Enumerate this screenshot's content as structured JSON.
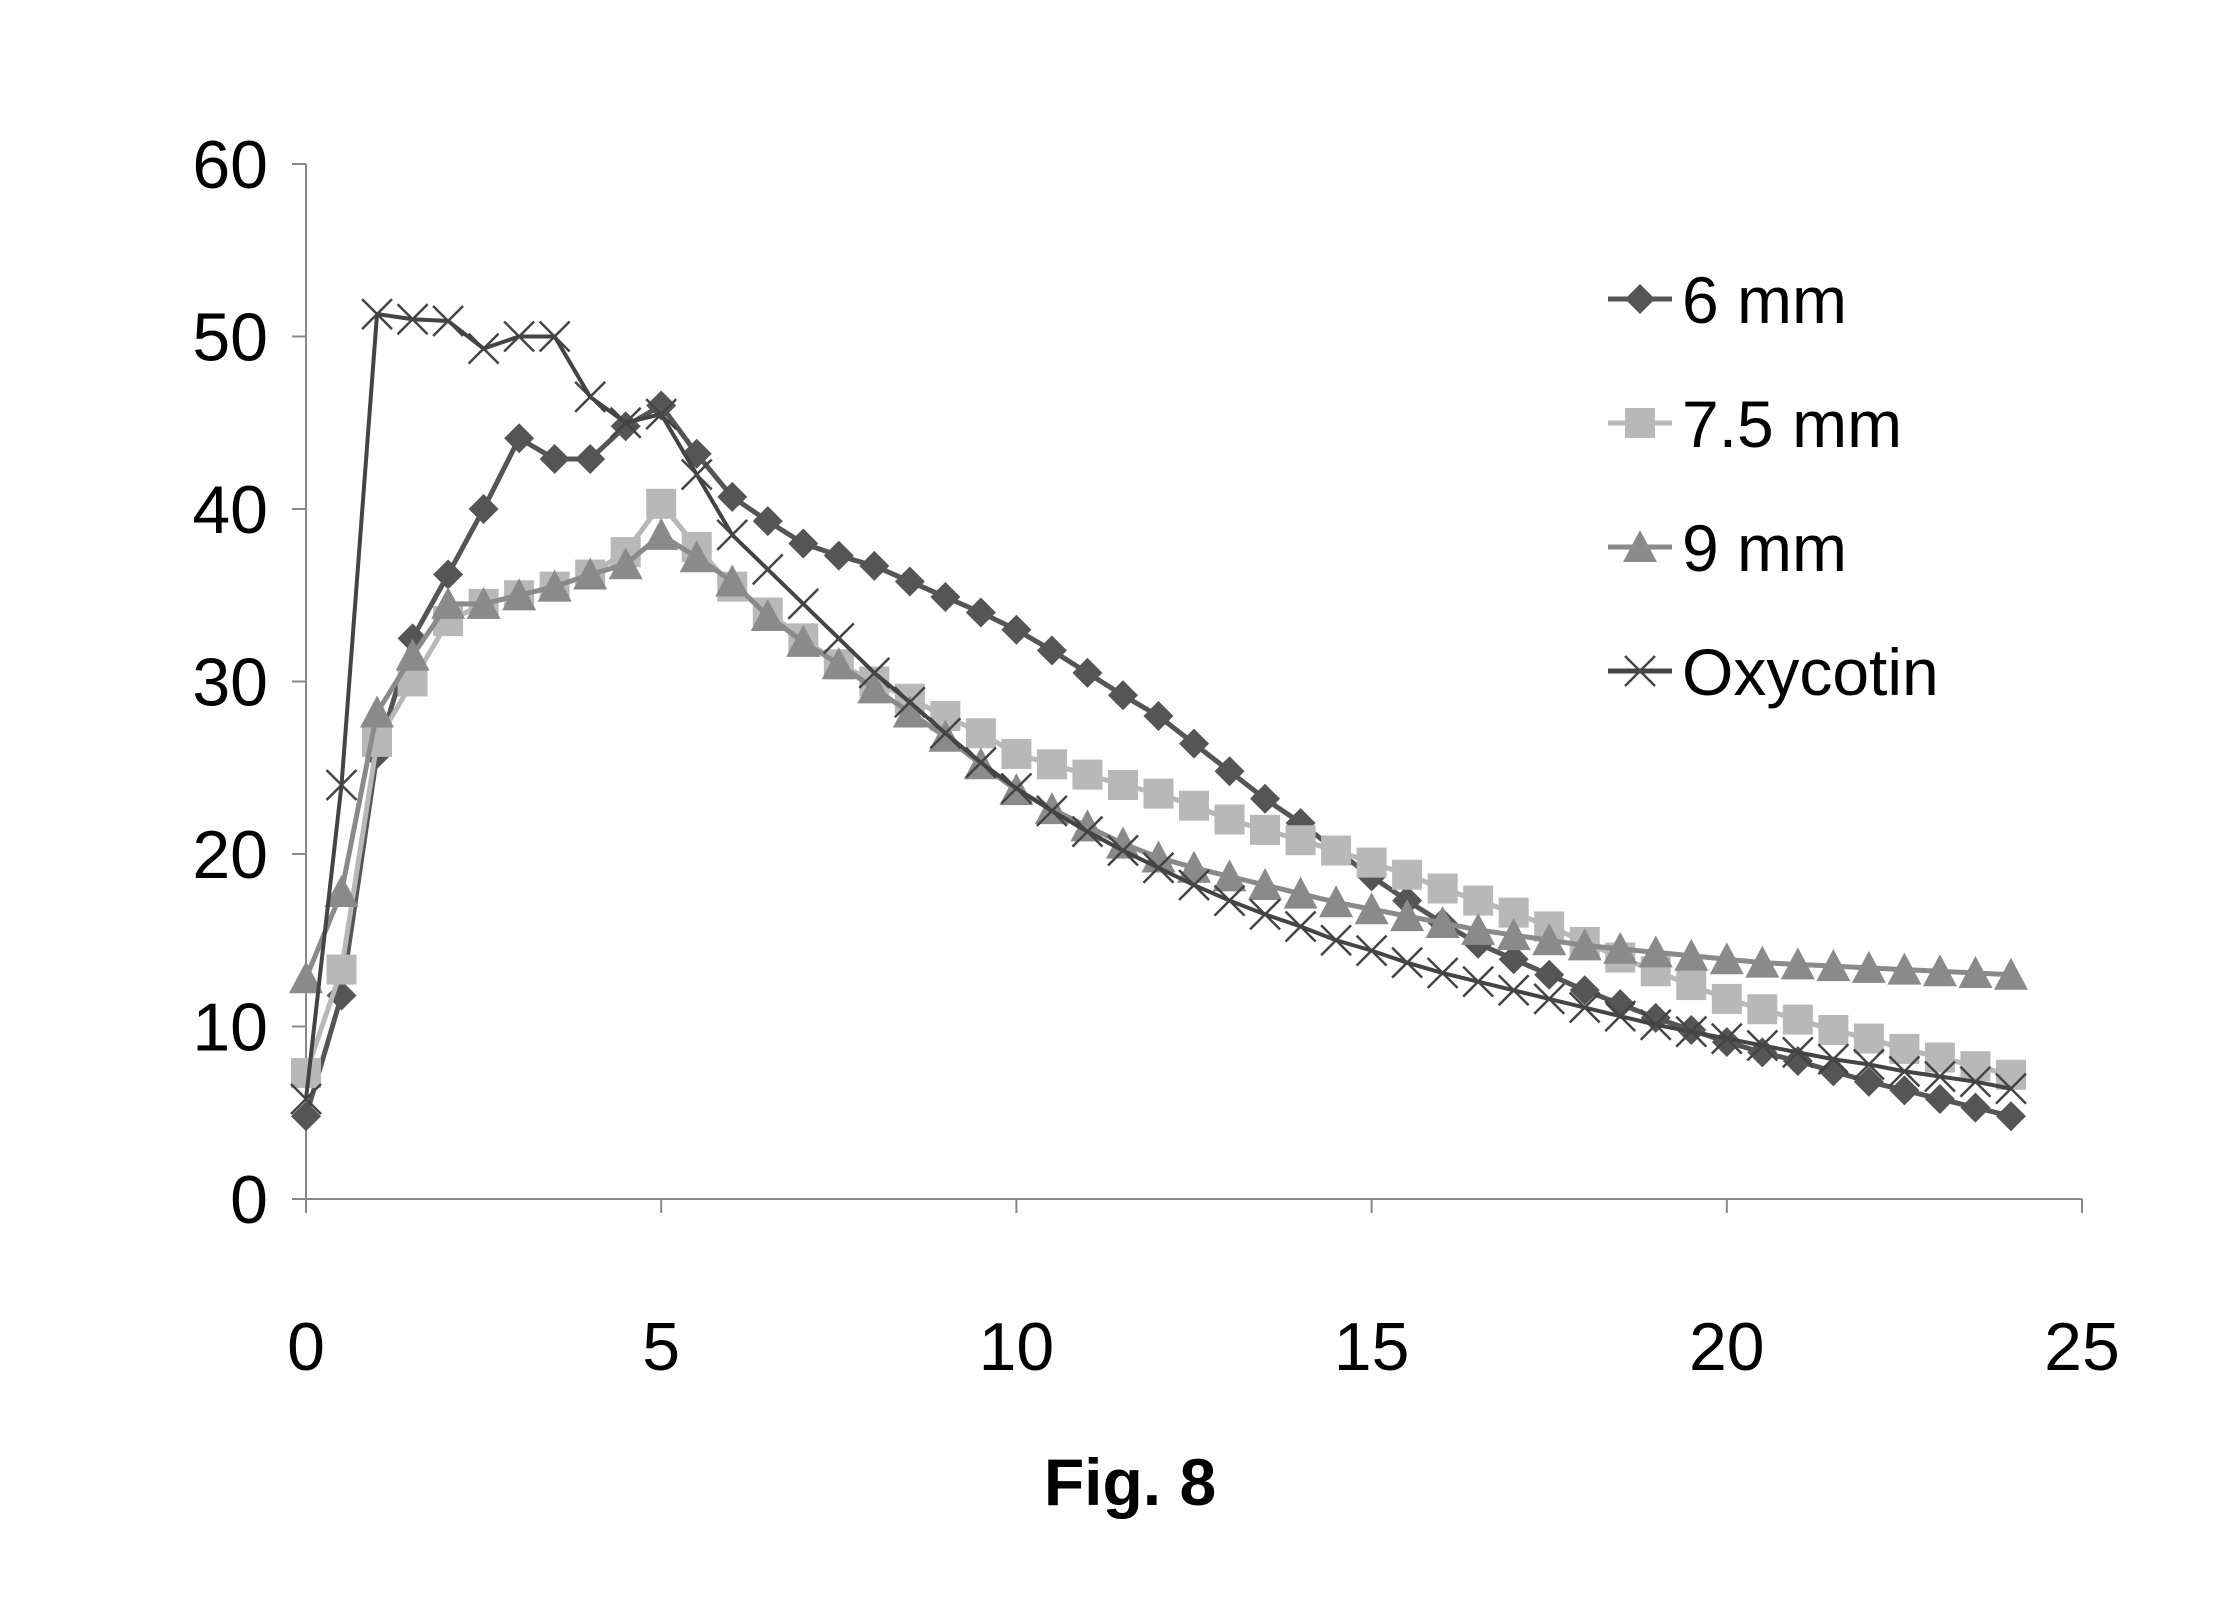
{
  "chart_data": {
    "type": "line",
    "title": "",
    "caption": "Fig. 8",
    "xlabel": "",
    "ylabel": "",
    "xlim": [
      0,
      25
    ],
    "ylim": [
      0,
      60
    ],
    "xticks": [
      "0",
      "5",
      "10",
      "15",
      "20",
      "25"
    ],
    "yticks": [
      "0",
      "10",
      "20",
      "30",
      "40",
      "50",
      "60"
    ],
    "grid": false,
    "legend_position": "right",
    "x": [
      0,
      0.5,
      1,
      1.5,
      2,
      2.5,
      3,
      3.5,
      4,
      4.5,
      5,
      5.5,
      6,
      6.5,
      7,
      7.5,
      8,
      8.5,
      9,
      9.5,
      10,
      10.5,
      11,
      11.5,
      12,
      12.5,
      13,
      13.5,
      14,
      14.5,
      15,
      15.5,
      16,
      16.5,
      17,
      17.5,
      18,
      18.5,
      19,
      19.5,
      20,
      20.5,
      21,
      21.5,
      22,
      22.5,
      23,
      23.5,
      24
    ],
    "series": [
      {
        "name": "6 mm",
        "marker": "diamond",
        "color": "#555555",
        "values": [
          4.8,
          11.8,
          25.8,
          32.5,
          36.2,
          40,
          44.1,
          42.9,
          42.9,
          44.8,
          46,
          43.2,
          40.7,
          39.3,
          38,
          37.3,
          36.7,
          35.8,
          34.9,
          34,
          33,
          31.8,
          30.5,
          29.2,
          28,
          26.4,
          24.8,
          23.2,
          21.8,
          20.2,
          18.7,
          17.3,
          16,
          14.8,
          13.9,
          13,
          12.1,
          11.3,
          10.5,
          9.8,
          9.1,
          8.5,
          8,
          7.4,
          6.8,
          6.3,
          5.8,
          5.3,
          4.8
        ]
      },
      {
        "name": "7.5 mm",
        "marker": "square",
        "color": "#b8b8b8",
        "values": [
          7.3,
          13.3,
          26.5,
          30,
          33.5,
          34.5,
          35,
          35.5,
          36.2,
          37.5,
          40.3,
          37.8,
          35.5,
          34,
          32.5,
          31,
          30,
          29,
          28,
          27,
          25.8,
          25.2,
          24.6,
          24,
          23.5,
          22.8,
          22,
          21.4,
          20.8,
          20.2,
          19.5,
          18.8,
          18,
          17.3,
          16.6,
          15.8,
          14.9,
          14,
          13.2,
          12.4,
          11.6,
          11,
          10.4,
          9.8,
          9.3,
          8.7,
          8.2,
          7.7,
          7.2
        ]
      },
      {
        "name": "9 mm",
        "marker": "triangle",
        "color": "#8a8a8a",
        "values": [
          12.8,
          17.8,
          28.2,
          31.5,
          34.5,
          34.5,
          35,
          35.5,
          36.2,
          36.8,
          38.5,
          37.2,
          35.8,
          33.8,
          32.3,
          31,
          29.6,
          28.2,
          26.8,
          25.2,
          23.7,
          22.6,
          21.6,
          20.6,
          19.8,
          19.2,
          18.7,
          18.2,
          17.7,
          17.2,
          16.8,
          16.4,
          16,
          15.6,
          15.3,
          15,
          14.7,
          14.5,
          14.3,
          14.1,
          13.9,
          13.7,
          13.6,
          13.5,
          13.4,
          13.3,
          13.2,
          13.1,
          13
        ]
      },
      {
        "name": "Oxycotin",
        "marker": "x",
        "color": "#444444",
        "values": [
          5.8,
          24,
          51.3,
          51,
          50.9,
          49.3,
          50,
          50,
          46.5,
          45,
          45.5,
          42,
          38.5,
          36.5,
          34.5,
          32.5,
          30.5,
          28.8,
          27,
          25.3,
          23.8,
          22.5,
          21.3,
          20.2,
          19.2,
          18.2,
          17.3,
          16.5,
          15.8,
          15,
          14.4,
          13.7,
          13.1,
          12.6,
          12.1,
          11.6,
          11.1,
          10.6,
          10.1,
          9.7,
          9.3,
          8.9,
          8.5,
          8.1,
          7.8,
          7.4,
          7.1,
          6.8,
          6.4
        ]
      }
    ]
  }
}
